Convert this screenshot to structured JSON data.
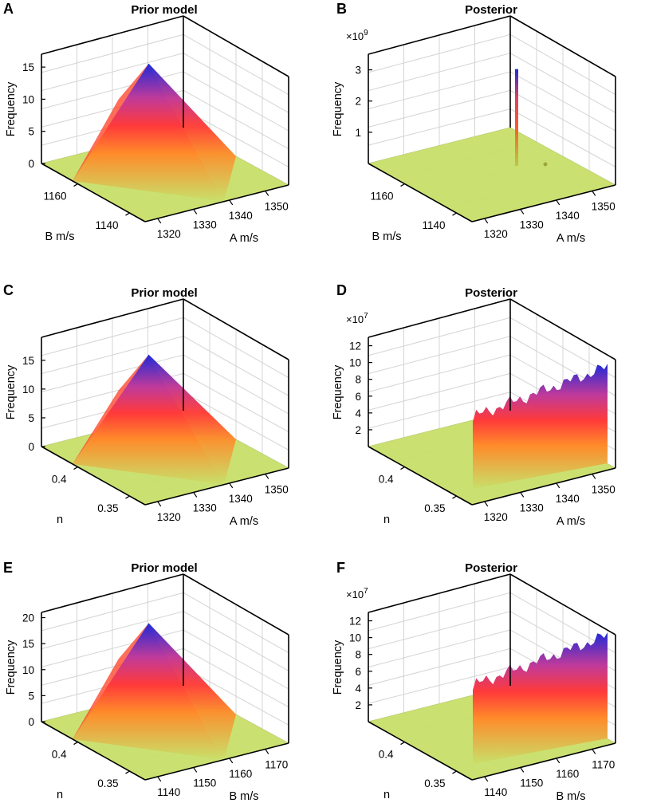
{
  "colors": {
    "low": "#c8e06a",
    "mid": "#ff3a2e",
    "high": "#1e2ad8",
    "grid": "#d4d4d4"
  },
  "chart_data": [
    {
      "panel": "A",
      "title": "Prior model",
      "type": "surface",
      "zlabel": "Frequency",
      "xlabel": "A m/s",
      "ylabel": "B m/s",
      "zticks": [
        "0",
        "5",
        "10",
        "15"
      ],
      "xticks": [
        "1320",
        "1330",
        "1340",
        "1350"
      ],
      "yticks": [
        "1140",
        "1160"
      ],
      "zlim": [
        0,
        17
      ],
      "peak": 16,
      "multiplier": ""
    },
    {
      "panel": "B",
      "title": "Posterior",
      "type": "surface",
      "zlabel": "Frequency",
      "xlabel": "A m/s",
      "ylabel": "B m/s",
      "zticks": [
        "1",
        "2",
        "3"
      ],
      "xticks": [
        "1320",
        "1330",
        "1340",
        "1350"
      ],
      "yticks": [
        "1140",
        "1160"
      ],
      "zlim": [
        0,
        3.5
      ],
      "peak": 3.1,
      "multiplier": "×10",
      "multiplier_exp": "9"
    },
    {
      "panel": "C",
      "title": "Prior model",
      "type": "surface",
      "zlabel": "Frequency",
      "xlabel": "A m/s",
      "ylabel": "n",
      "zticks": [
        "0",
        "5",
        "10",
        "15"
      ],
      "xticks": [
        "1320",
        "1330",
        "1340",
        "1350"
      ],
      "yticks": [
        "0.35",
        "0.4"
      ],
      "zlim": [
        0,
        19
      ],
      "peak": 16.5,
      "multiplier": ""
    },
    {
      "panel": "D",
      "title": "Posterior",
      "type": "surface",
      "zlabel": "Frequency",
      "xlabel": "A m/s",
      "ylabel": "n",
      "zticks": [
        "2",
        "4",
        "6",
        "8",
        "10",
        "12"
      ],
      "xticks": [
        "1320",
        "1330",
        "1340",
        "1350"
      ],
      "yticks": [
        "0.35",
        "0.4"
      ],
      "zlim": [
        0,
        13
      ],
      "peak": 11,
      "multiplier": "×10",
      "multiplier_exp": "7"
    },
    {
      "panel": "E",
      "title": "Prior model",
      "type": "surface",
      "zlabel": "Frequency",
      "xlabel": "B m/s",
      "ylabel": "n",
      "zticks": [
        "0",
        "5",
        "10",
        "15",
        "20"
      ],
      "xticks": [
        "1140",
        "1150",
        "1160",
        "1170"
      ],
      "yticks": [
        "0.35",
        "0.4"
      ],
      "zlim": [
        0,
        21
      ],
      "peak": 19.5,
      "multiplier": ""
    },
    {
      "panel": "F",
      "title": "Posterior",
      "type": "surface",
      "zlabel": "Frequency",
      "xlabel": "B m/s",
      "ylabel": "n",
      "zticks": [
        "2",
        "4",
        "6",
        "8",
        "10",
        "12"
      ],
      "xticks": [
        "1140",
        "1150",
        "1160",
        "1170"
      ],
      "yticks": [
        "0.35",
        "0.4"
      ],
      "zlim": [
        0,
        13
      ],
      "peak": 12,
      "multiplier": "×10",
      "multiplier_exp": "7"
    }
  ]
}
